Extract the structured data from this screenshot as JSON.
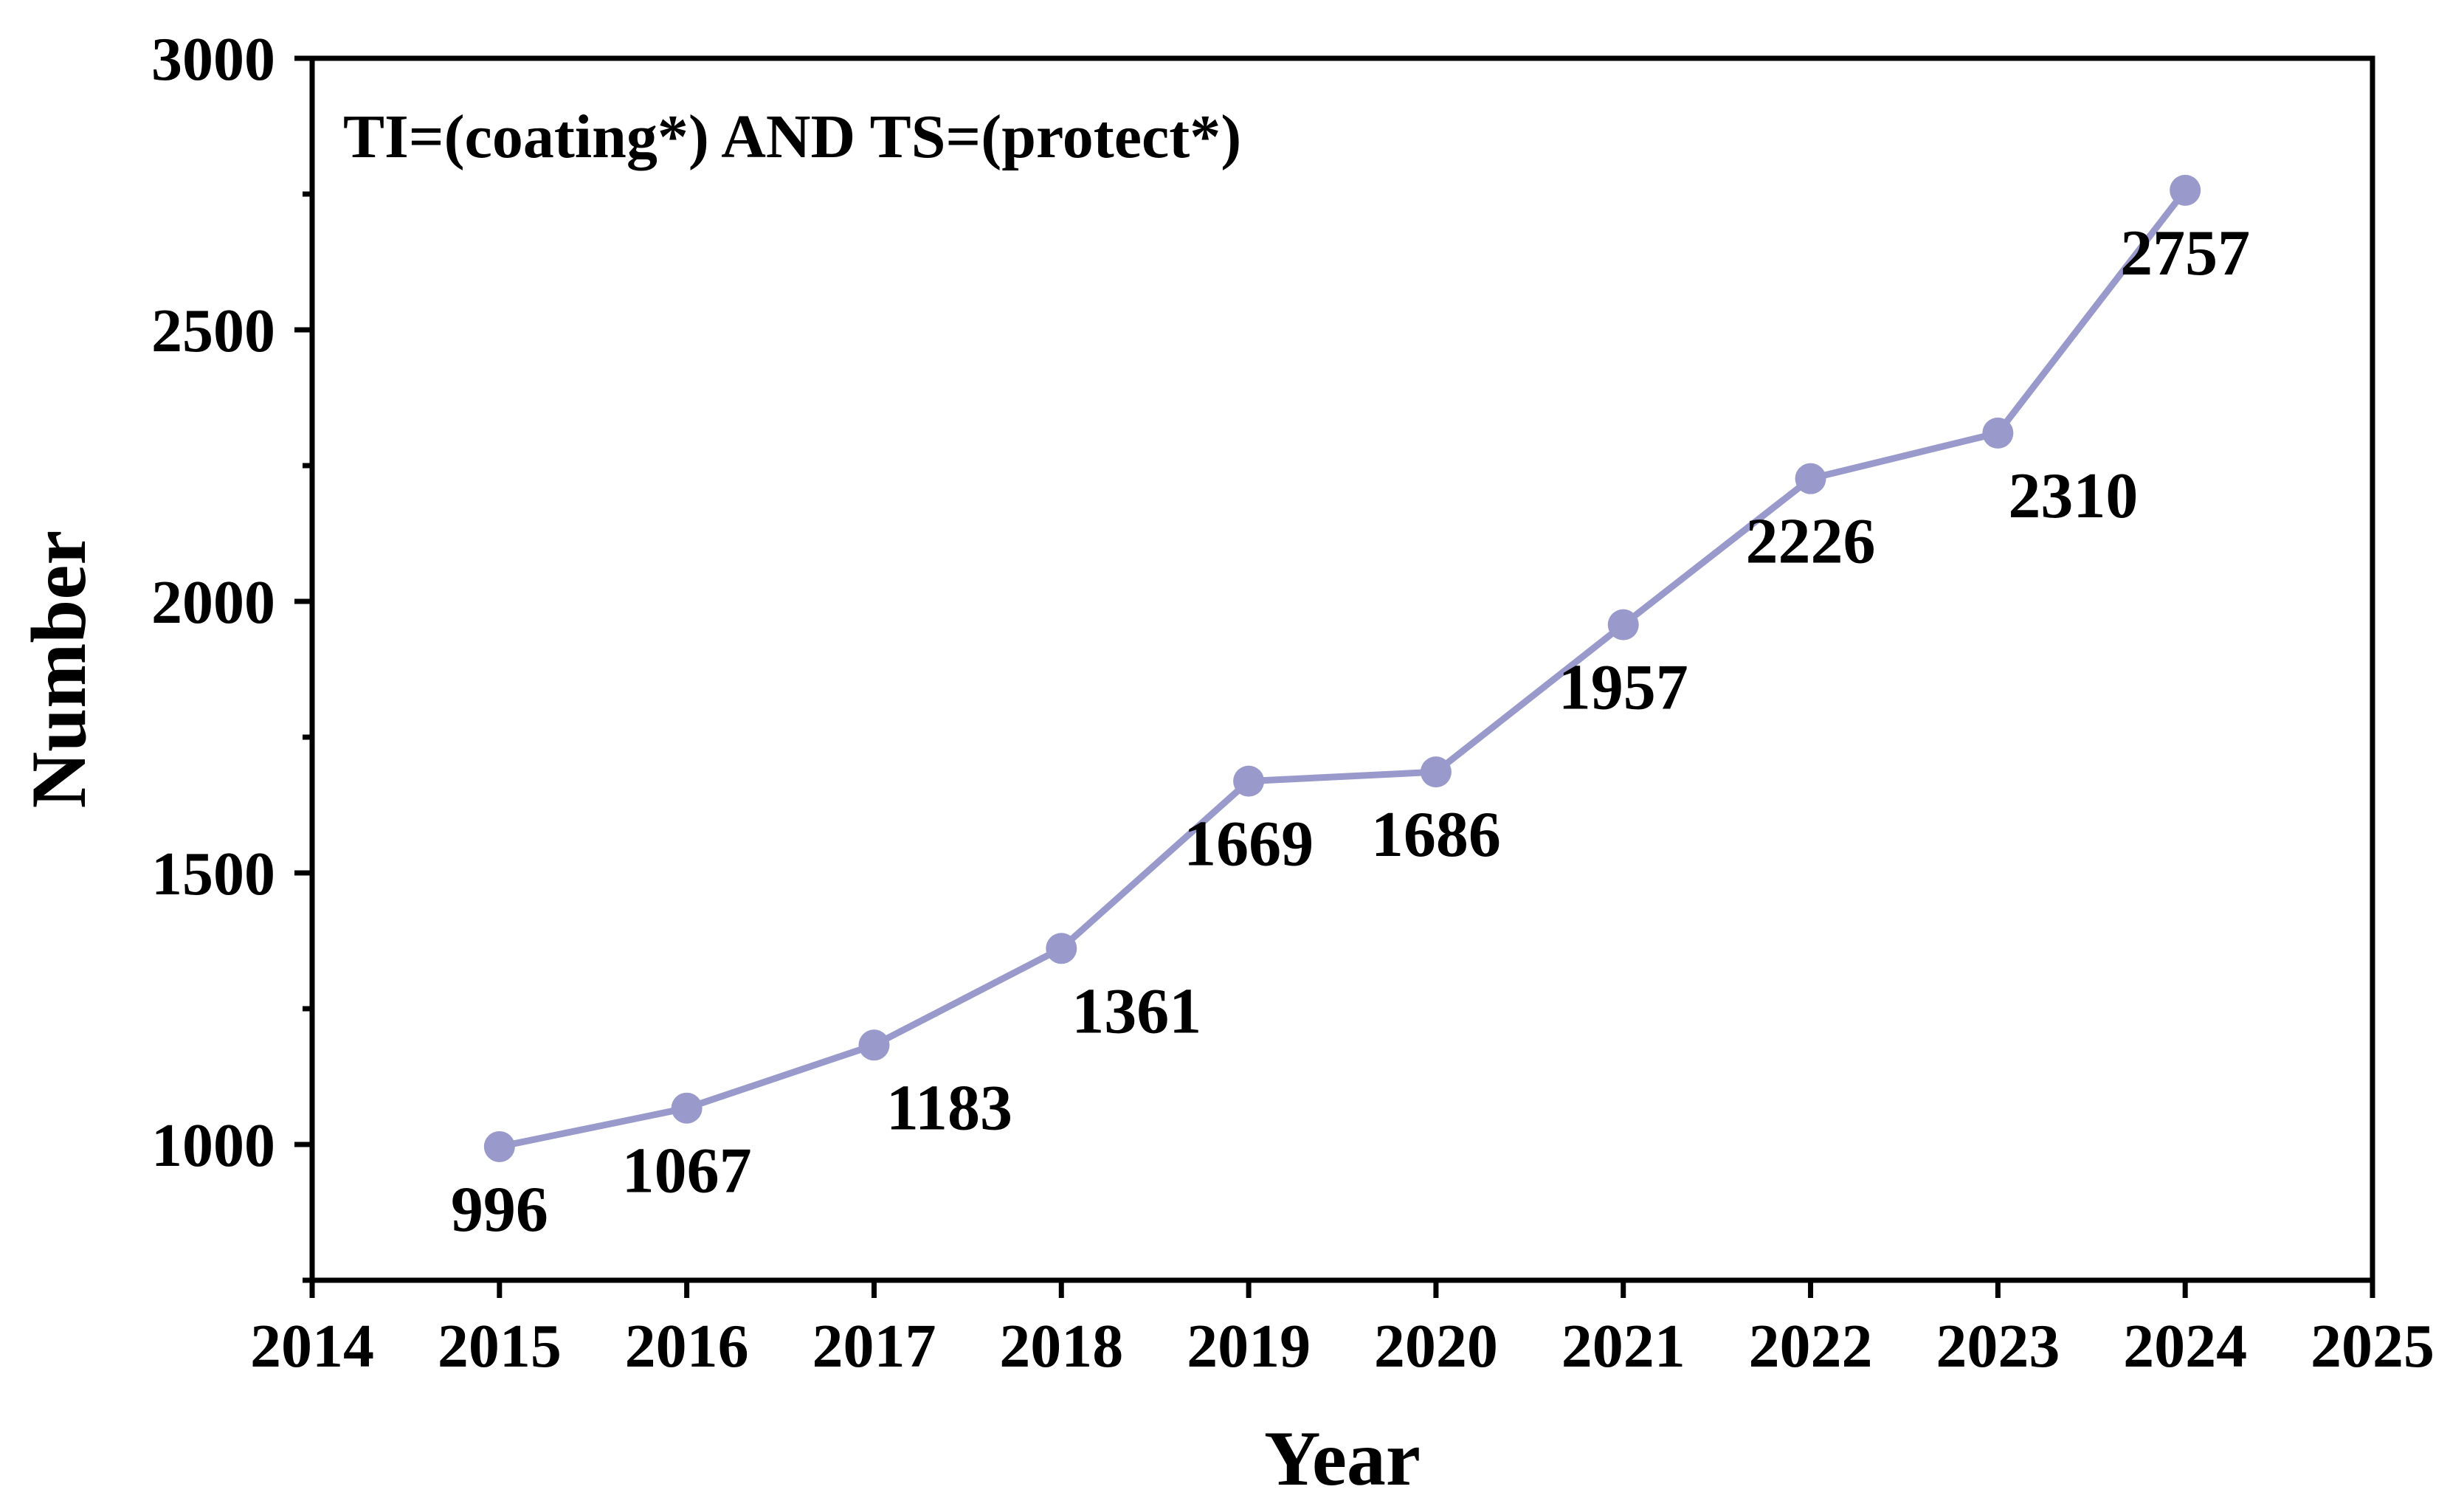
{
  "chart_data": {
    "type": "line",
    "title": "",
    "annotation": "TI=(coating*) AND TS=(protect*)",
    "xlabel": "Year",
    "ylabel": "Number",
    "xlim": [
      2014,
      2025
    ],
    "ylim": [
      750,
      3000
    ],
    "xticks": [
      2014,
      2015,
      2016,
      2017,
      2018,
      2019,
      2020,
      2021,
      2022,
      2023,
      2024,
      2025
    ],
    "xtick_labels": [
      "2014",
      "2015",
      "2016",
      "2017",
      "2018",
      "2019",
      "2020",
      "2021",
      "2022",
      "2023",
      "2024",
      "2025"
    ],
    "yticks": [
      1000,
      1500,
      2000,
      2500,
      3000
    ],
    "ytick_labels": [
      "1000",
      "1500",
      "2000",
      "2500",
      "3000"
    ],
    "yminor_ticks": [
      750,
      1250,
      1750,
      2250,
      2750
    ],
    "grid": false,
    "legend": "none",
    "series": [
      {
        "name": "Number",
        "color": "#9999cc",
        "x": [
          2015,
          2016,
          2017,
          2018,
          2019,
          2020,
          2021,
          2022,
          2023,
          2024
        ],
        "values": [
          996,
          1067,
          1183,
          1361,
          1669,
          1686,
          1957,
          2226,
          2310,
          2757
        ],
        "labels": [
          "996",
          "1067",
          "1183",
          "1361",
          "1669",
          "1686",
          "1957",
          "2226",
          "2310",
          "2757"
        ]
      }
    ]
  }
}
